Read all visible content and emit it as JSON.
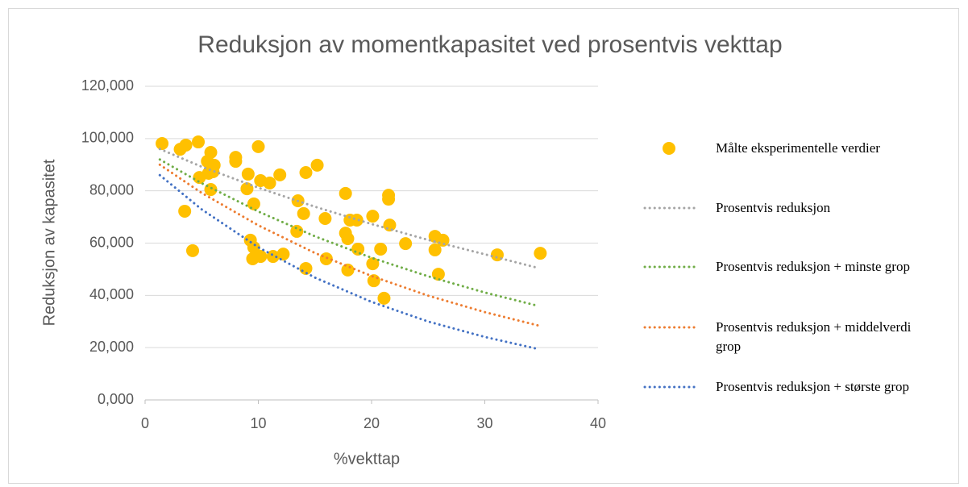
{
  "chart_data": {
    "type": "scatter",
    "title": "Reduksjon av momentkapasitet ved prosentvis vekttap",
    "x_label": "%vekttap",
    "y_label": "Reduksjon av kapasitet",
    "xlim": [
      0,
      40
    ],
    "xticks": [
      0,
      10,
      20,
      30,
      40
    ],
    "ylim": [
      0,
      120
    ],
    "yticks": [
      {
        "value": 0,
        "label": "0,000"
      },
      {
        "value": 20,
        "label": "20,000"
      },
      {
        "value": 40,
        "label": "40,000"
      },
      {
        "value": 60,
        "label": "60,000"
      },
      {
        "value": 80,
        "label": "80,000"
      },
      {
        "value": 100,
        "label": "100,000"
      },
      {
        "value": 120,
        "label": "120,000"
      }
    ],
    "grid": true,
    "legend": "right",
    "series": [
      {
        "name": "Målte eksperimentelle verdier",
        "color": "#ffc000",
        "mode": "markers",
        "x": [
          1.5,
          3.1,
          3.6,
          3.5,
          4.2,
          4.7,
          4.8,
          5.5,
          5.8,
          5.6,
          6.1,
          5.8,
          6.0,
          8.0,
          8.0,
          9.1,
          9.0,
          10.0,
          10.2,
          11.0,
          9.6,
          11.9,
          9.3,
          9.6,
          9.5,
          10.2,
          11.3,
          12.2,
          13.5,
          13.4,
          14.0,
          14.2,
          14.2,
          15.2,
          15.9,
          16.0,
          17.7,
          17.7,
          17.9,
          18.1,
          18.7,
          18.8,
          17.9,
          20.1,
          20.1,
          20.2,
          20.8,
          21.1,
          21.5,
          21.5,
          21.6,
          23.0,
          25.6,
          25.6,
          25.9,
          26.3,
          31.1,
          34.9
        ],
        "values": [
          98.1,
          95.9,
          97.5,
          72.2,
          57.1,
          98.7,
          85.1,
          91.3,
          94.7,
          86.7,
          89.8,
          80.5,
          87.3,
          92.8,
          91.3,
          86.4,
          80.8,
          96.9,
          83.9,
          83.0,
          75.0,
          86.1,
          61.1,
          58.3,
          54.0,
          54.9,
          54.9,
          55.8,
          76.2,
          64.5,
          71.3,
          50.3,
          87.0,
          89.8,
          69.4,
          54.0,
          79.0,
          63.8,
          61.7,
          68.8,
          68.8,
          57.7,
          49.7,
          70.3,
          52.1,
          45.6,
          57.7,
          38.9,
          78.3,
          76.8,
          66.9,
          59.8,
          62.6,
          57.4,
          48.1,
          61.1,
          55.5,
          56.1
        ]
      },
      {
        "name": "Prosentvis reduksjon",
        "color": "#a5a5a5",
        "mode": "dotted-line",
        "x": [
          1.3,
          5,
          10,
          15,
          20,
          25,
          30,
          34.7
        ],
        "values": [
          96,
          89.2,
          81.2,
          73.9,
          67.3,
          61.2,
          55.7,
          50.5
        ]
      },
      {
        "name": "Prosentvis reduksjon + minste grop",
        "color": "#70ad47",
        "mode": "dotted-line",
        "x": [
          1.3,
          5,
          10,
          15,
          20,
          25,
          30,
          34.7
        ],
        "values": [
          92,
          82.9,
          72.1,
          62.6,
          54.4,
          47.3,
          41.1,
          36
        ]
      },
      {
        "name": "Prosentvis reduksjon + middelverdi grop",
        "color": "#ed7d31",
        "mode": "dotted-line",
        "x": [
          1.3,
          5,
          10,
          15,
          20,
          25,
          30,
          34.7
        ],
        "values": [
          90,
          79.2,
          66.8,
          56.2,
          47.4,
          39.9,
          33.6,
          28.5
        ]
      },
      {
        "name": "Prosentvis reduksjon + største grop",
        "color": "#4472c4",
        "mode": "dotted-line",
        "x": [
          1.3,
          5,
          10,
          15,
          20,
          25,
          30,
          34.7
        ],
        "values": [
          86,
          72.9,
          58.4,
          46.8,
          37.5,
          30.0,
          24.1,
          19.5
        ]
      }
    ]
  }
}
